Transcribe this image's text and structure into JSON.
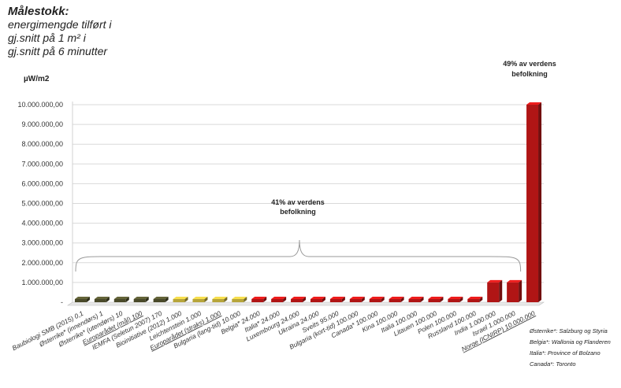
{
  "title": {
    "line1": "Målestokk:",
    "line2": "energimengde tilført i",
    "line3": "gj.snitt på 1 m² i",
    "line4": "gj.snitt på 6 minutter"
  },
  "chart_data": {
    "type": "bar",
    "ylabel": "µW/m2",
    "ylim": [
      0,
      10000000
    ],
    "yticks": [
      "-",
      "1.000.000,00",
      "2.000.000,00",
      "3.000.000,00",
      "4.000.000,00",
      "5.000.000,00",
      "6.000.000,00",
      "7.000.000,00",
      "8.000.000,00",
      "9.000.000,00",
      "10.000.000,00"
    ],
    "grid": true,
    "categories": [
      "Baubiologi SMB (2015)  0,1",
      "Østerrike* (innendørs)  1",
      "Østerrike* (utendørs)  10",
      "Europarådet (mål)  100",
      "IEMFA (Seletun 2007)  170",
      "Bioinitiative (2012)  1.000",
      "Leichtenstein  1.000",
      "Europarådet (straks)  1.000",
      "Bulgaria (lang-tid)  10.000",
      "Belgia*  24.000",
      "Italia*  24.000",
      "Luxembourg  24.000",
      "Ukraina  24.000",
      "Sveits  95.000",
      "Bulgaria (kort-tid)  100.000",
      "Canada*  100.000",
      "Kina  100.000",
      "Italia  100.000",
      "Litauen  100.000",
      "Polen  100.000",
      "Russland  100.000",
      "India  1.000.000",
      "Israel  1.000.000",
      "Norge (ICNIRP)  10.000.000"
    ],
    "values": [
      0.1,
      1,
      10,
      100,
      170,
      1000,
      1000,
      1000,
      10000,
      24000,
      24000,
      24000,
      24000,
      95000,
      100000,
      100000,
      100000,
      100000,
      100000,
      100000,
      100000,
      1000000,
      1000000,
      10000000
    ],
    "bar_colors": [
      "#4a4a2a",
      "#4a4a2a",
      "#4a4a2a",
      "#4a4a2a",
      "#4a4a2a",
      "#b7a53a",
      "#b7a53a",
      "#b7a53a",
      "#b7a53a",
      "#b01515",
      "#b01515",
      "#b01515",
      "#b01515",
      "#b01515",
      "#b01515",
      "#b01515",
      "#b01515",
      "#b01515",
      "#b01515",
      "#b01515",
      "#b01515",
      "#b01515",
      "#b01515",
      "#b01515"
    ],
    "underlined": [
      3,
      7,
      23
    ],
    "annotations": [
      {
        "text_line1": "41% av verdens",
        "text_line2": "befolkning"
      },
      {
        "text_line1": "49% av verdens",
        "text_line2": "befolkning"
      }
    ]
  },
  "footnotes": [
    "Østerrike*: Salzburg og Styria",
    "Belgia*: Wallonia og Flanderen",
    "Italia*: Province of Bolzano",
    "Canada*: Toronto"
  ]
}
